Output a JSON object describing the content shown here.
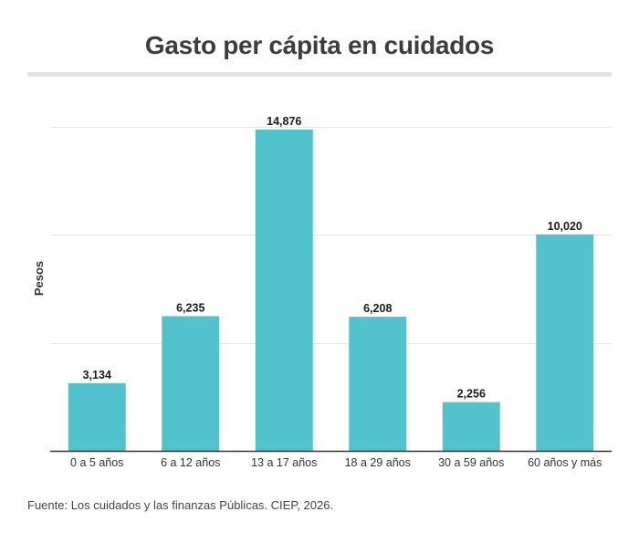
{
  "title": "Gasto per cápita en cuidados",
  "source": "Fuente: Los cuidados y las finanzas Públicas. CIEP, 2026.",
  "colors": {
    "bar": "#52c3cc",
    "grid": "#e6e6e6",
    "axis": "#333333"
  },
  "chart_data": {
    "type": "bar",
    "title": "Gasto per cápita en cuidados",
    "xlabel": "",
    "ylabel": "Pesos",
    "categories": [
      "0 a 5 años",
      "6 a 12 años",
      "13 a 17 años",
      "18 a 29 años",
      "30 a 59 años",
      "60 años y más"
    ],
    "values": [
      3134,
      6235,
      14876,
      6208,
      2256,
      10020
    ],
    "value_labels": [
      "3,134",
      "6,235",
      "14,876",
      "6,208",
      "2,256",
      "10,020"
    ],
    "ylim": [
      0,
      15000
    ],
    "gridlines": [
      5000,
      10000,
      15000
    ],
    "grid": true,
    "legend": "none"
  }
}
